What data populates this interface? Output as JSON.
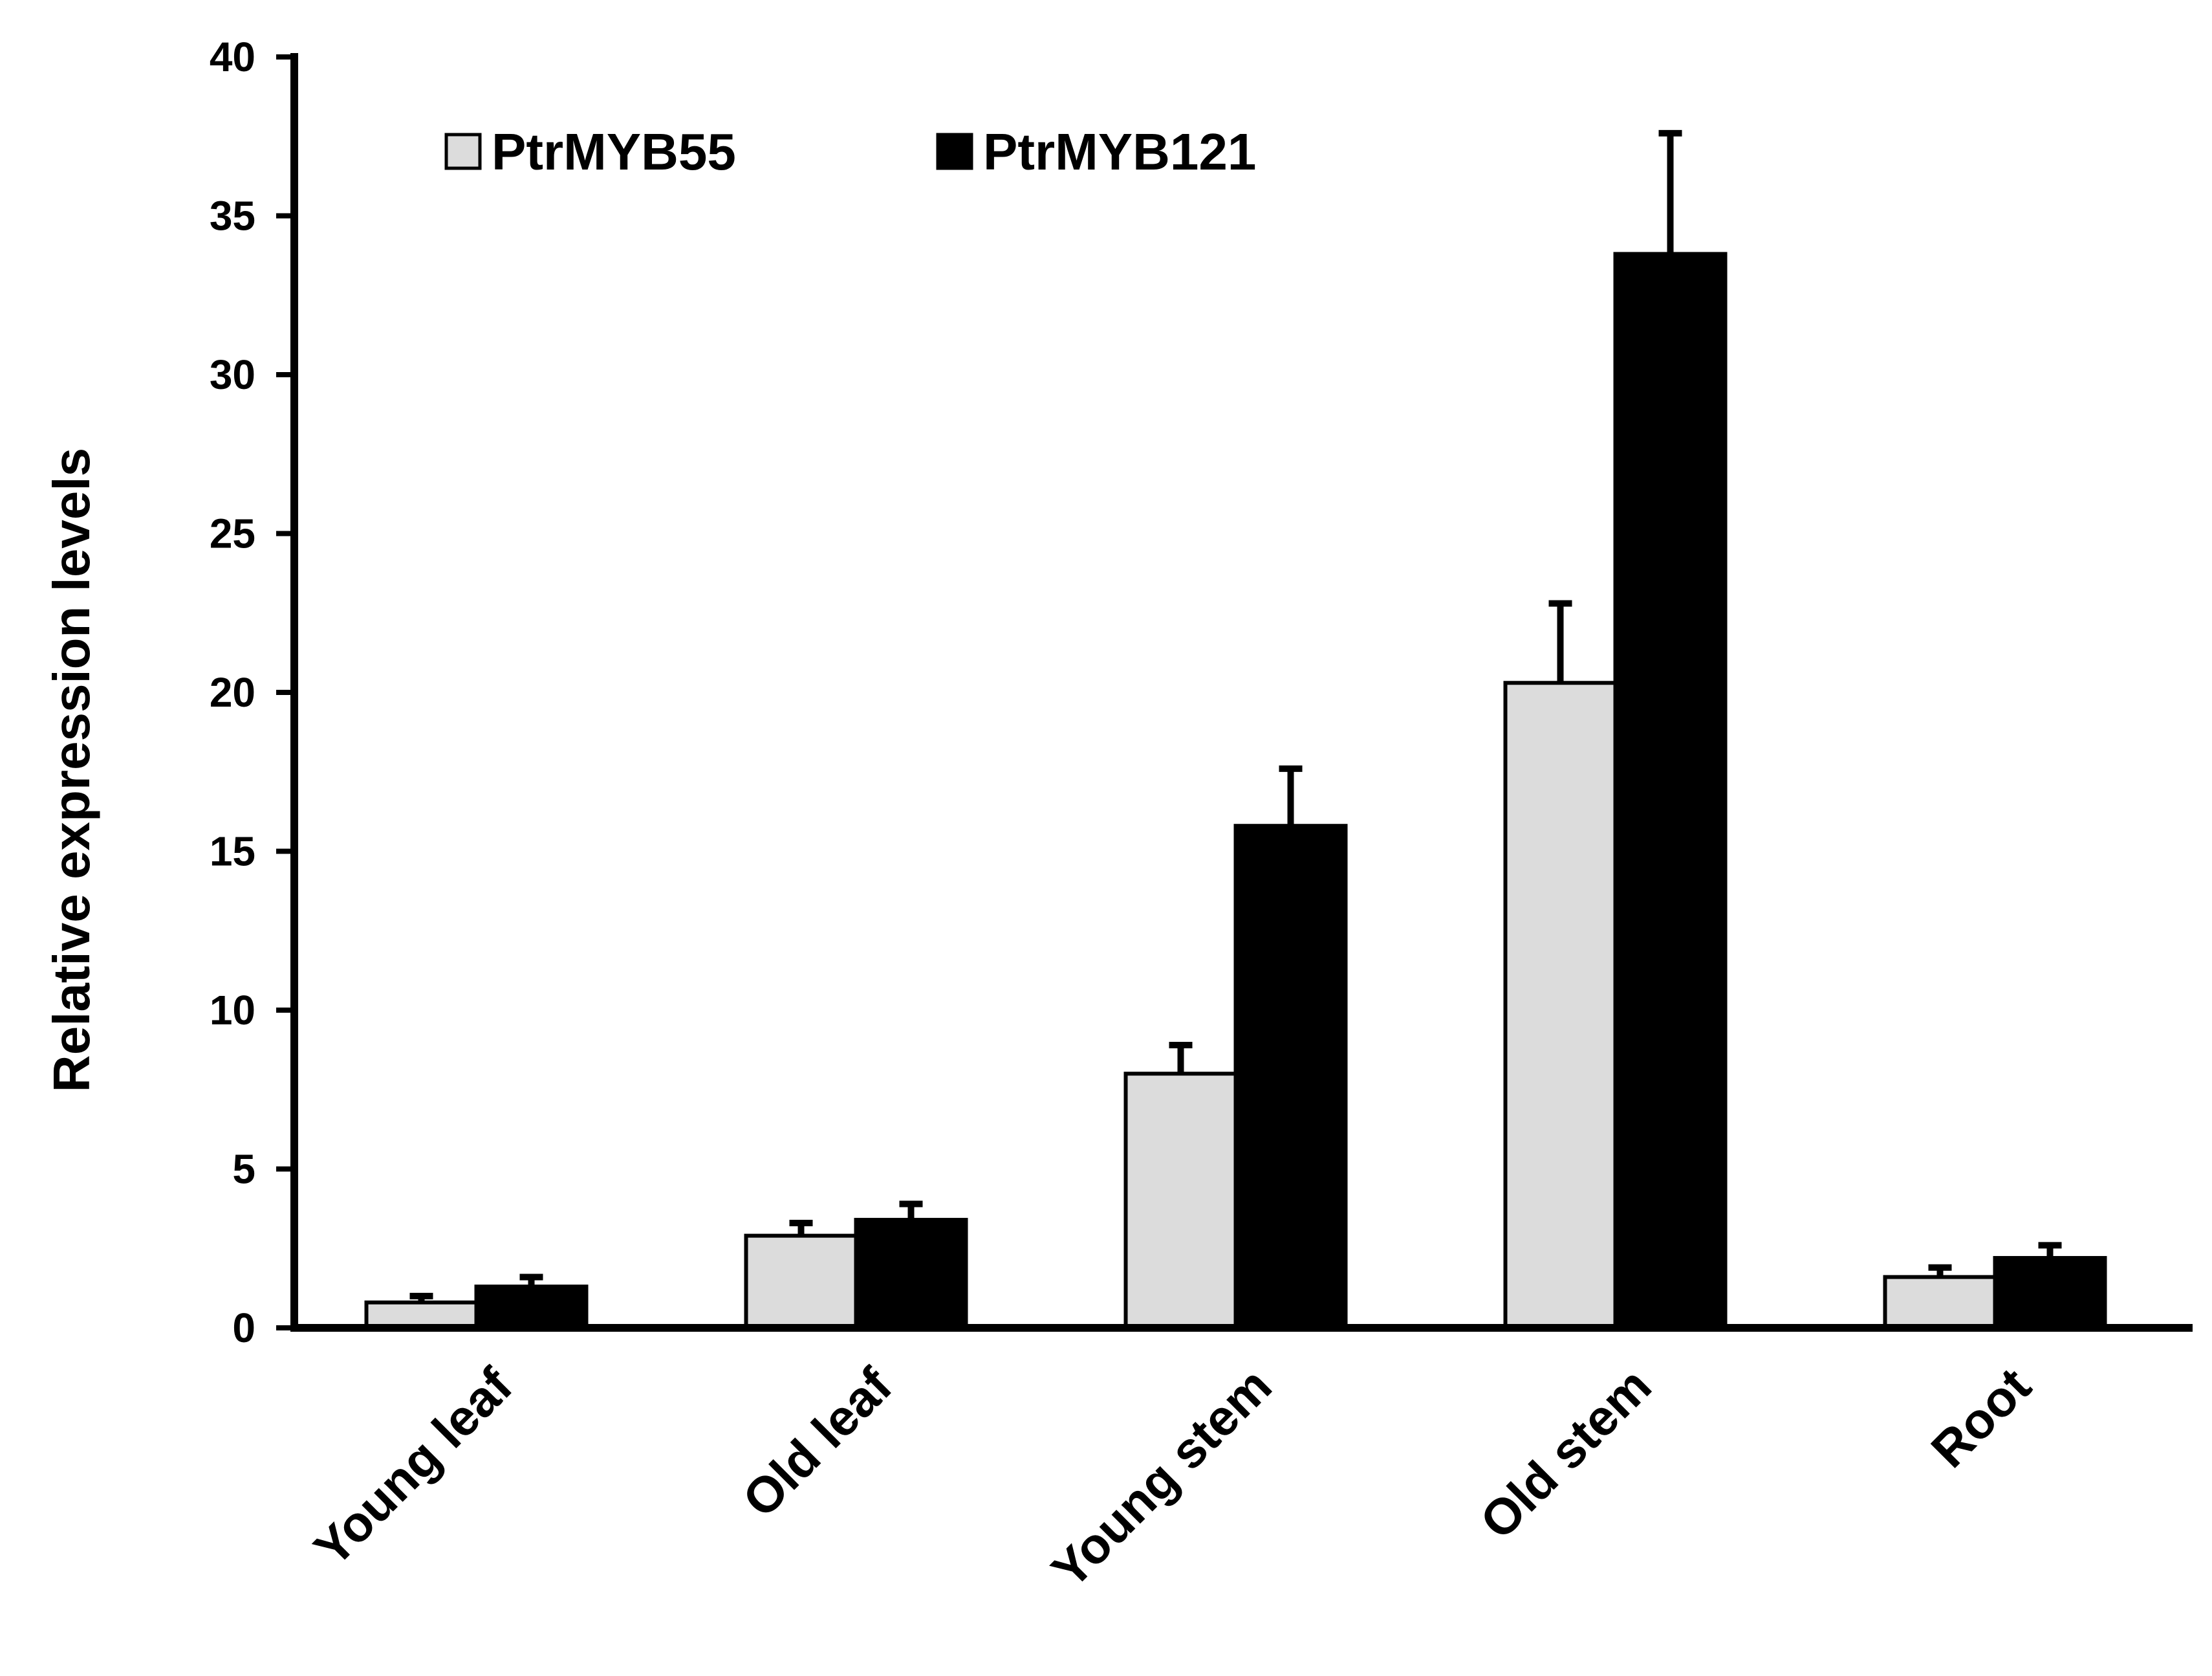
{
  "chart_data": {
    "type": "bar",
    "categories": [
      "Young leaf",
      "Old leaf",
      "Young stem",
      "Old stem",
      "Root"
    ],
    "series": [
      {
        "name": "PtrMYB55",
        "values": [
          0.8,
          2.9,
          8.0,
          20.3,
          1.6
        ],
        "errors": [
          0.2,
          0.4,
          0.9,
          2.5,
          0.3
        ],
        "color": "#dcdcdc"
      },
      {
        "name": "PtrMYB121",
        "values": [
          1.3,
          3.4,
          15.8,
          33.8,
          2.2
        ],
        "errors": [
          0.3,
          0.5,
          1.8,
          3.8,
          0.4
        ],
        "color": "#000000"
      }
    ],
    "ylabel": "Relative expression levels",
    "xlabel": "",
    "ylim": [
      0,
      40
    ],
    "yticks": [
      0,
      5,
      10,
      15,
      20,
      25,
      30,
      35,
      40
    ],
    "grid": false,
    "legend_position": "top-left"
  }
}
